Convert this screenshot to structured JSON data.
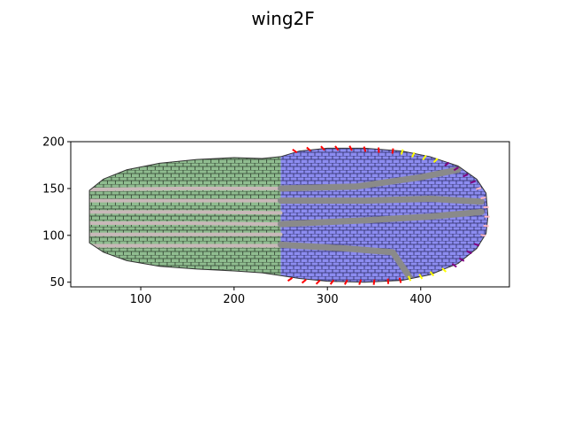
{
  "chart_data": {
    "type": "scatter",
    "title": "wing2F",
    "xlabel": "",
    "ylabel": "",
    "xlim": [
      25,
      495
    ],
    "ylim": [
      45,
      200
    ],
    "xticks": [
      100,
      200,
      300,
      400
    ],
    "yticks": [
      50,
      100,
      150,
      200
    ],
    "grid": false,
    "colors": {
      "green_region": "#8fbc8f",
      "blue_region": "#8c8cf0",
      "vein_dark": "#8a8a8a",
      "vein_light": "#c8b8b8",
      "cell_edge": "#333333",
      "margin_red": "#ff0000",
      "margin_yellow": "#ffff00",
      "margin_purple": "#800080",
      "margin_pink": "#ffb6c1"
    },
    "outline": {
      "top": [
        [
          45,
          148
        ],
        [
          60,
          160
        ],
        [
          85,
          170
        ],
        [
          120,
          177
        ],
        [
          160,
          181
        ],
        [
          200,
          183
        ],
        [
          230,
          182
        ],
        [
          250,
          184
        ],
        [
          270,
          190
        ],
        [
          300,
          193
        ],
        [
          340,
          193
        ],
        [
          380,
          190
        ],
        [
          410,
          184
        ],
        [
          440,
          174
        ],
        [
          460,
          160
        ],
        [
          470,
          145
        ],
        [
          472,
          120
        ]
      ],
      "bottom": [
        [
          45,
          92
        ],
        [
          60,
          82
        ],
        [
          85,
          73
        ],
        [
          120,
          67
        ],
        [
          160,
          64
        ],
        [
          200,
          62
        ],
        [
          230,
          60
        ],
        [
          250,
          57
        ],
        [
          270,
          54
        ],
        [
          300,
          51
        ],
        [
          340,
          50
        ],
        [
          380,
          52
        ],
        [
          410,
          58
        ],
        [
          440,
          70
        ],
        [
          460,
          86
        ],
        [
          470,
          102
        ],
        [
          472,
          120
        ]
      ]
    },
    "region_boundary": [
      [
        250,
        45
      ],
      [
        255,
        200
      ]
    ],
    "veins": [
      {
        "name": "L1",
        "shade": "light",
        "width": 4,
        "points": [
          [
            45,
            149
          ],
          [
            150,
            150
          ],
          [
            250,
            150
          ]
        ]
      },
      {
        "name": "L2",
        "shade": "light",
        "width": 4,
        "points": [
          [
            45,
            137
          ],
          [
            150,
            137
          ],
          [
            250,
            137
          ]
        ]
      },
      {
        "name": "L3",
        "shade": "light",
        "width": 4,
        "points": [
          [
            45,
            125
          ],
          [
            150,
            125
          ],
          [
            250,
            124
          ]
        ]
      },
      {
        "name": "L4",
        "shade": "light",
        "width": 4,
        "points": [
          [
            45,
            113
          ],
          [
            150,
            113
          ],
          [
            250,
            112
          ]
        ]
      },
      {
        "name": "L5",
        "shade": "light",
        "width": 4,
        "points": [
          [
            45,
            101
          ],
          [
            150,
            101
          ],
          [
            250,
            101
          ]
        ]
      },
      {
        "name": "L6",
        "shade": "light",
        "width": 4,
        "points": [
          [
            45,
            89
          ],
          [
            150,
            89
          ],
          [
            250,
            89
          ]
        ]
      },
      {
        "name": "V1",
        "shade": "dark",
        "width": 7,
        "points": [
          [
            250,
            150
          ],
          [
            330,
            152
          ],
          [
            400,
            162
          ],
          [
            440,
            170
          ]
        ]
      },
      {
        "name": "V2",
        "shade": "dark",
        "width": 7,
        "points": [
          [
            250,
            137
          ],
          [
            340,
            137
          ],
          [
            410,
            139
          ],
          [
            465,
            136
          ]
        ]
      },
      {
        "name": "V3",
        "shade": "dark",
        "width": 7,
        "points": [
          [
            250,
            112
          ],
          [
            340,
            116
          ],
          [
            410,
            120
          ],
          [
            465,
            125
          ]
        ]
      },
      {
        "name": "V4",
        "shade": "dark",
        "width": 7,
        "points": [
          [
            250,
            90
          ],
          [
            320,
            86
          ],
          [
            370,
            82
          ],
          [
            385,
            60
          ],
          [
            390,
            52
          ]
        ]
      }
    ],
    "margin_marks": [
      {
        "color": "red",
        "points": [
          [
            265,
            190
          ],
          [
            280,
            192
          ],
          [
            295,
            193
          ],
          [
            310,
            193
          ],
          [
            325,
            193
          ],
          [
            340,
            192
          ],
          [
            355,
            191
          ],
          [
            370,
            190
          ]
        ]
      },
      {
        "color": "yellow",
        "points": [
          [
            380,
            189
          ],
          [
            392,
            186
          ],
          [
            404,
            183
          ],
          [
            416,
            180
          ]
        ]
      },
      {
        "color": "purple",
        "points": [
          [
            428,
            176
          ],
          [
            438,
            171
          ],
          [
            448,
            164
          ],
          [
            456,
            157
          ]
        ]
      },
      {
        "color": "pink",
        "points": [
          [
            462,
            150
          ],
          [
            467,
            140
          ],
          [
            470,
            130
          ],
          [
            471,
            120
          ],
          [
            470,
            110
          ],
          [
            467,
            100
          ]
        ]
      },
      {
        "color": "purple",
        "points": [
          [
            460,
            90
          ],
          [
            452,
            82
          ],
          [
            444,
            74
          ],
          [
            436,
            68
          ]
        ]
      },
      {
        "color": "yellow",
        "points": [
          [
            425,
            63
          ],
          [
            412,
            59
          ],
          [
            400,
            56
          ],
          [
            388,
            54
          ]
        ]
      },
      {
        "color": "red",
        "points": [
          [
            260,
            53
          ],
          [
            275,
            51
          ],
          [
            290,
            50
          ],
          [
            305,
            50
          ],
          [
            320,
            50
          ],
          [
            335,
            50
          ],
          [
            350,
            50
          ],
          [
            365,
            51
          ],
          [
            378,
            52
          ]
        ]
      }
    ]
  }
}
